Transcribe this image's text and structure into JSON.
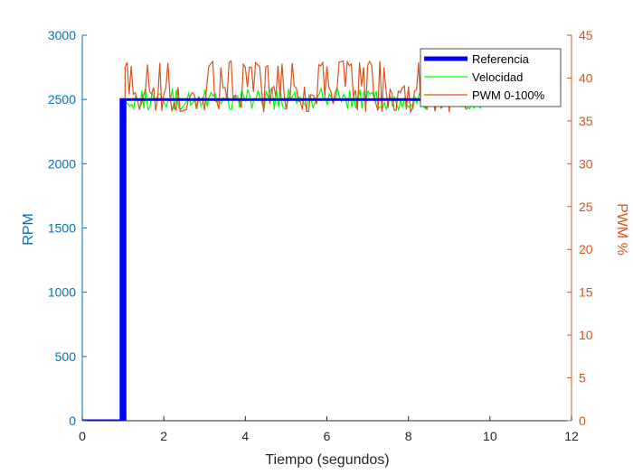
{
  "chart_data": {
    "type": "line",
    "xlabel": "Tiempo (segundos)",
    "ylabel_left": "RPM",
    "ylabel_right": "PWM %",
    "xlim": [
      0,
      12
    ],
    "ylim_left": [
      0,
      3000
    ],
    "ylim_right": [
      0,
      45
    ],
    "xticks": [
      0,
      2,
      4,
      6,
      8,
      10,
      12
    ],
    "yticks_left": [
      0,
      500,
      1000,
      1500,
      2000,
      2500,
      3000
    ],
    "yticks_right": [
      0,
      5,
      10,
      15,
      20,
      25,
      30,
      35,
      40,
      45
    ],
    "grid": false,
    "legend_position": "top-right",
    "series": [
      {
        "name": "Referencia",
        "axis": "left",
        "color": "#0000ff",
        "x": [
          0,
          0.95,
          0.95,
          1.0,
          1.0,
          1.05,
          1.05,
          10.1
        ],
        "y": [
          0,
          0,
          2500,
          2500,
          0,
          0,
          2500,
          2500
        ]
      },
      {
        "name": "Velocidad",
        "axis": "left",
        "color": "#00ff00",
        "x_range": [
          0,
          10.3
        ],
        "step_time": 1.0,
        "start_value": 2300,
        "low": 2420,
        "high": 2590,
        "center": 2500
      },
      {
        "name": "PWM 0-100%",
        "axis": "right",
        "color": "#d95319",
        "x_range": [
          1.05,
          10.3
        ],
        "low": 36,
        "high": 42,
        "center": 38
      }
    ]
  },
  "axis_colors": {
    "left": "#0072bd",
    "right": "#d95319",
    "x": "#262626"
  }
}
